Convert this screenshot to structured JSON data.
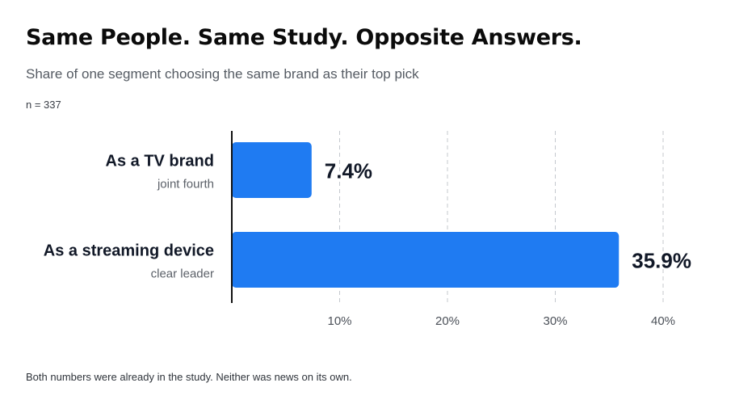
{
  "header": {
    "title": "Same People. Same Study. Opposite Answers.",
    "subtitle": "Share of one segment choosing the same brand as their top pick",
    "sample": "n = 337"
  },
  "footer": {
    "note": "Both numbers were already in the study. Neither was news on its own."
  },
  "colors": {
    "bar": "#1f7bf2",
    "axis": "#111111",
    "grid": "#c4c8ce"
  },
  "chart_data": {
    "type": "bar",
    "orientation": "horizontal",
    "categories": [
      "As a TV brand",
      "As a streaming device"
    ],
    "category_notes": [
      "joint fourth",
      "clear leader"
    ],
    "values": [
      7.4,
      35.9
    ],
    "value_labels": [
      "7.4%",
      "35.9%"
    ],
    "xlim": [
      0,
      40
    ],
    "ticks": [
      10,
      20,
      30,
      40
    ],
    "tick_labels": [
      "10%",
      "20%",
      "30%",
      "40%"
    ],
    "grid": "vertical-dashed",
    "legend": "none"
  }
}
